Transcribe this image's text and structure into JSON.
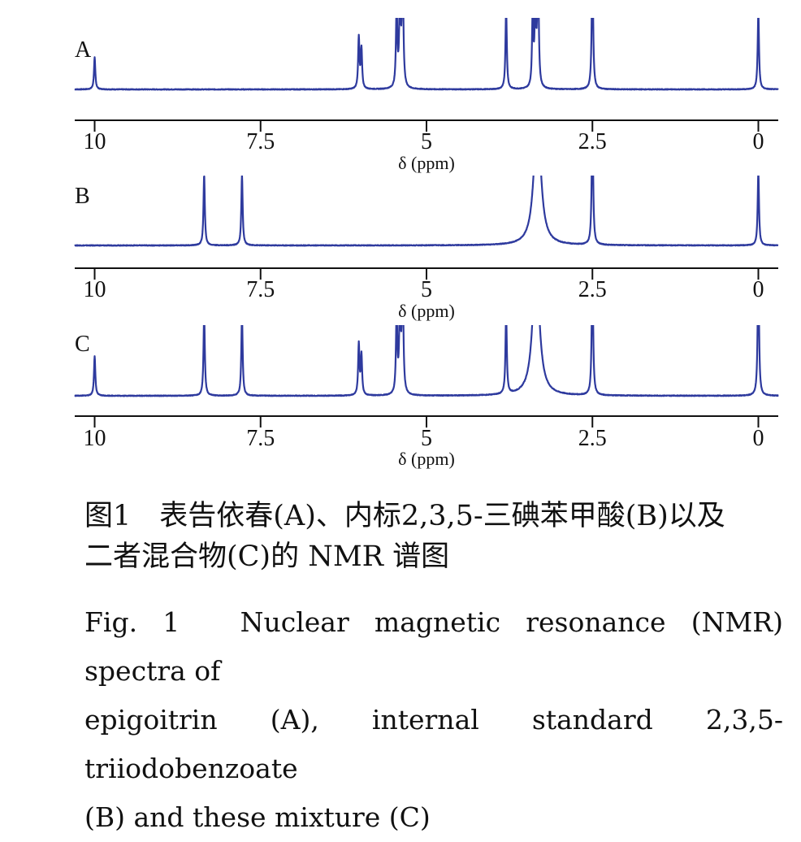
{
  "chart_data": [
    {
      "type": "line",
      "panel_label": "A",
      "xlabel": "δ (ppm)",
      "x_ticks": [
        "10",
        "7.5",
        "5",
        "2.5",
        "0"
      ],
      "xlim": [
        10.3,
        -0.3
      ],
      "peaks": [
        {
          "x": 10.0,
          "height": 0.28
        },
        {
          "x": 6.02,
          "height": 0.45
        },
        {
          "x": 5.98,
          "height": 0.35
        },
        {
          "x": 5.45,
          "height": 0.72
        },
        {
          "x": 5.4,
          "height": 0.85
        },
        {
          "x": 5.36,
          "height": 1.2
        },
        {
          "x": 3.8,
          "height": 0.72
        },
        {
          "x": 3.4,
          "height": 0.65
        },
        {
          "x": 3.36,
          "height": 0.75
        },
        {
          "x": 3.32,
          "height": 1.2
        },
        {
          "x": 2.5,
          "height": 1.2
        },
        {
          "x": 0.0,
          "height": 0.68
        }
      ]
    },
    {
      "type": "line",
      "panel_label": "B",
      "xlabel": "δ (ppm)",
      "x_ticks": [
        "10",
        "7.5",
        "5",
        "2.5",
        "0"
      ],
      "xlim": [
        10.3,
        -0.3
      ],
      "peaks": [
        {
          "x": 8.35,
          "height": 0.62
        },
        {
          "x": 7.78,
          "height": 0.62
        },
        {
          "x": 3.33,
          "height": 1.2,
          "broad": true
        },
        {
          "x": 2.5,
          "height": 1.2
        },
        {
          "x": 0.0,
          "height": 0.65
        }
      ]
    },
    {
      "type": "line",
      "panel_label": "C",
      "xlabel": "δ (ppm)",
      "x_ticks": [
        "10",
        "7.5",
        "5",
        "2.5",
        "0"
      ],
      "xlim": [
        10.3,
        -0.3
      ],
      "peaks": [
        {
          "x": 10.0,
          "height": 0.35
        },
        {
          "x": 8.35,
          "height": 0.72
        },
        {
          "x": 7.78,
          "height": 0.72
        },
        {
          "x": 6.02,
          "height": 0.45
        },
        {
          "x": 5.98,
          "height": 0.35
        },
        {
          "x": 5.45,
          "height": 0.72
        },
        {
          "x": 5.4,
          "height": 0.85
        },
        {
          "x": 5.36,
          "height": 1.2
        },
        {
          "x": 3.8,
          "height": 0.72
        },
        {
          "x": 3.35,
          "height": 1.2,
          "broad": true
        },
        {
          "x": 2.5,
          "height": 1.2
        },
        {
          "x": 0.0,
          "height": 1.2
        }
      ]
    }
  ],
  "caption": {
    "cn_line1": "图1　表告依春(A)、内标2,3,5-三碘苯甲酸(B)以及",
    "cn_line2": "二者混合物(C)的 NMR 谱图",
    "en_line1": "Fig. 1　Nuclear magnetic resonance (NMR) spectra of",
    "en_line2": "epigoitrin (A), internal standard 2,3,5-triiodobenzoate",
    "en_line3": "(B) and these mixture (C)"
  },
  "colors": {
    "spectrum": "#2e3a9e",
    "axis": "#111111"
  }
}
